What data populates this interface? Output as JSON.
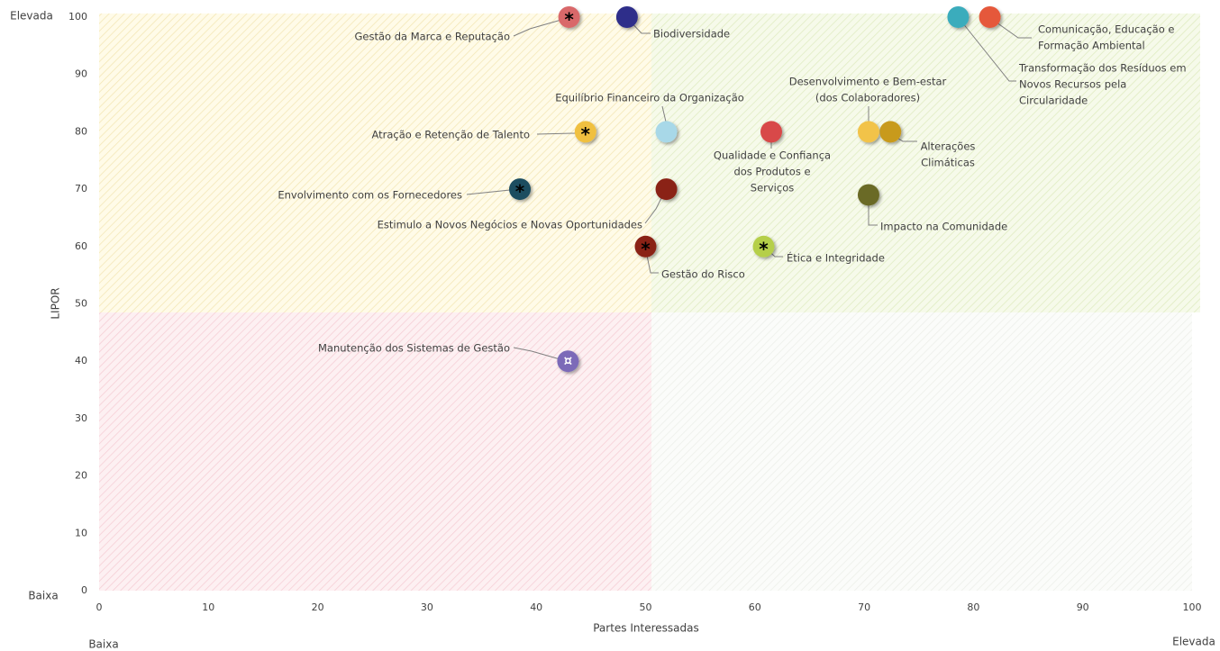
{
  "chart_data": {
    "type": "scatter",
    "xlabel": "Partes Interessadas",
    "ylabel": "LIPOR",
    "corner_labels": {
      "y_high": "Elevada",
      "y_low": "Baixa",
      "x_low": "Baixa",
      "x_high": "Elevada"
    },
    "xlim": [
      0,
      100
    ],
    "ylim": [
      0,
      100
    ],
    "xticks": [
      0,
      10,
      20,
      30,
      40,
      50,
      60,
      70,
      80,
      90,
      100
    ],
    "yticks": [
      0,
      10,
      20,
      30,
      40,
      50,
      60,
      70,
      80,
      90,
      100
    ],
    "labels": [
      [
        "Gestão da Marca e Reputação"
      ],
      [
        "Biodiversidade"
      ],
      [
        "Comunicação, Educação e",
        "Formação Ambiental"
      ],
      [
        "Transformação dos Resíduos em",
        "Novos Recursos pela",
        "Circularidade"
      ],
      [
        "Equilíbrio Financeiro da Organização"
      ],
      [
        "Atração e Retenção de Talento"
      ],
      [
        "Qualidade e Confiança",
        "dos Produtos e",
        "Serviços"
      ],
      [
        "Desenvolvimento e Bem-estar",
        "(dos Colaboradores)"
      ],
      [
        "Alterações",
        "Climáticas"
      ],
      [
        "Envolvimento com os Fornecedores"
      ],
      [
        "Estimulo a Novos Negócios e Novas Oportunidades"
      ],
      [
        "Impacto na Comunidade"
      ],
      [
        "Gestão do Risco"
      ],
      [
        "Ética e Integridade"
      ],
      [
        "Manutenção dos Sistemas de Gestão"
      ]
    ],
    "x": [
      43,
      48.3,
      81.5,
      78.6,
      51.9,
      44.5,
      61.5,
      70.4,
      72.4,
      38.5,
      51.9,
      70.4,
      50,
      60.8,
      42.9
    ],
    "values": [
      100,
      100,
      100,
      100,
      80,
      80,
      80,
      80,
      80,
      70,
      70,
      69,
      60,
      60,
      40
    ],
    "colors": [
      "#d9676a",
      "#2e2e8a",
      "#e5593a",
      "#3aacbc",
      "#a8d8e8",
      "#f0c040",
      "#d84848",
      "#f2c34a",
      "#c89a1a",
      "#1f4e60",
      "#8a2015",
      "#6b6b28",
      "#8a2015",
      "#b5cf4a",
      "#7b6bb8"
    ],
    "markers": [
      "*",
      null,
      null,
      null,
      null,
      "*",
      null,
      null,
      null,
      "*",
      null,
      null,
      "*",
      "*",
      "¤"
    ]
  }
}
